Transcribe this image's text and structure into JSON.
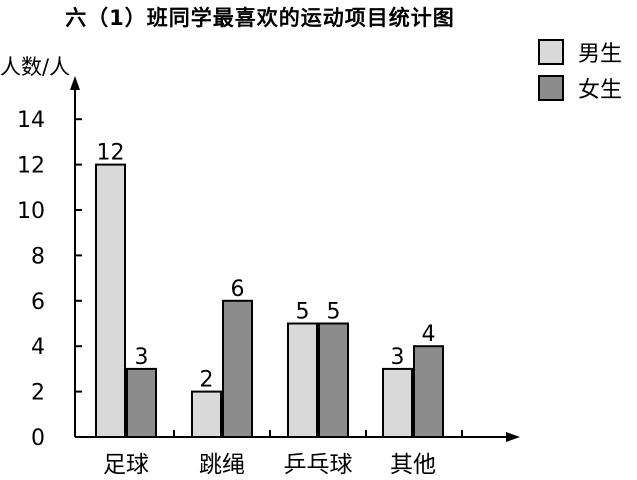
{
  "chart_data": {
    "type": "bar",
    "title": "六（1）班同学最喜欢的运动项目统计图",
    "ylabel": "人数/人",
    "xlabel": "",
    "categories": [
      "足球",
      "跳绳",
      "乒乓球",
      "其他"
    ],
    "series": [
      {
        "name": "男生",
        "values": [
          12,
          2,
          5,
          3
        ],
        "color": "#d9d9d9"
      },
      {
        "name": "女生",
        "values": [
          3,
          6,
          5,
          4
        ],
        "color": "#8c8c8c"
      }
    ],
    "ylim": [
      0,
      14
    ],
    "yticks": [
      0,
      2,
      4,
      6,
      8,
      10,
      12,
      14
    ],
    "grid": false,
    "legend_position": "top-right"
  }
}
